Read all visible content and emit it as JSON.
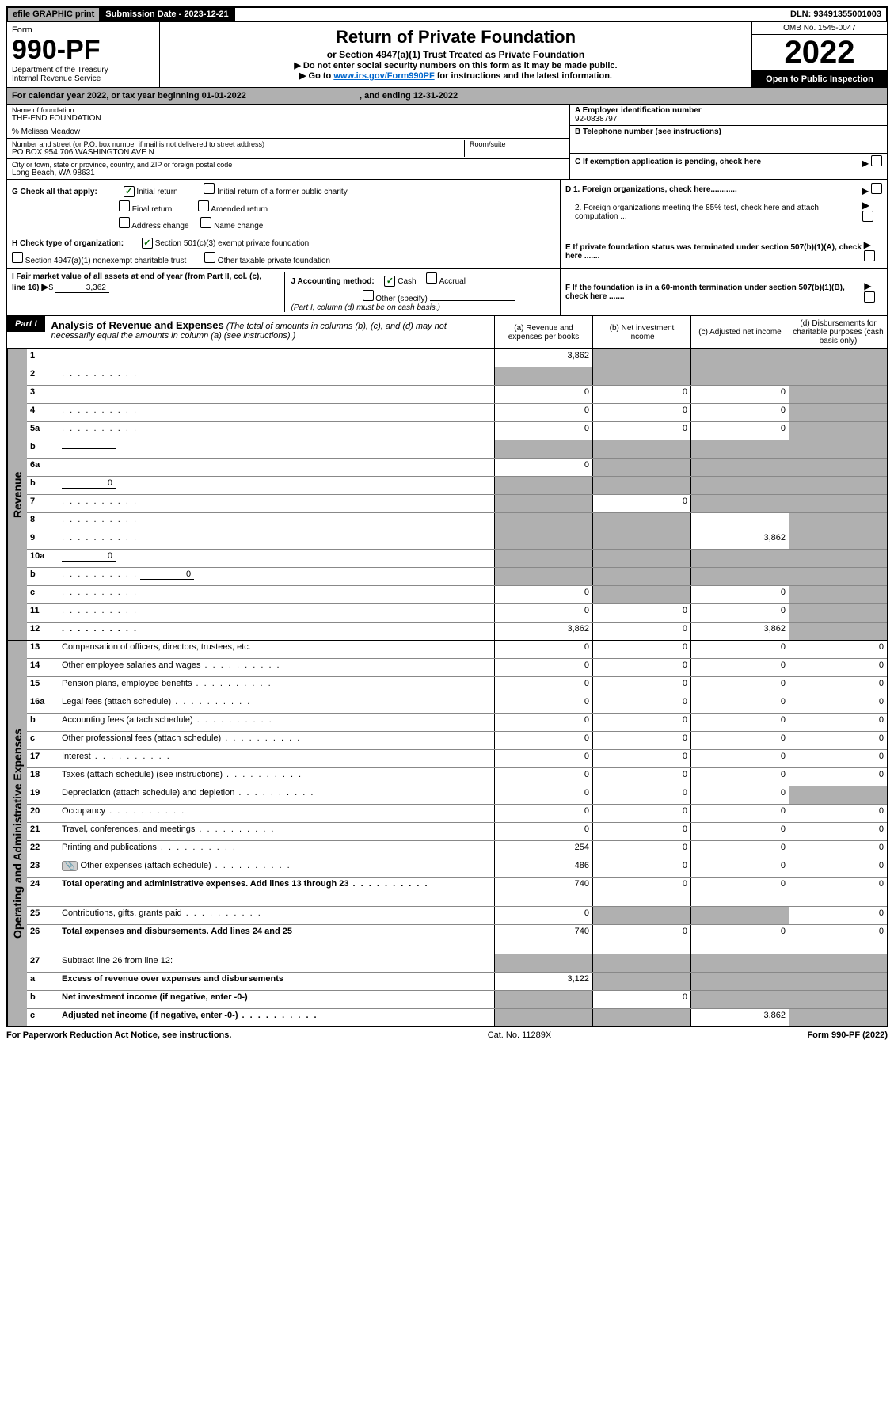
{
  "topbar": {
    "efile": "efile GRAPHIC print",
    "sub_label": "Submission Date - 2023-12-21",
    "dln": "DLN: 93491355001003"
  },
  "header": {
    "form_word": "Form",
    "form_no": "990-PF",
    "dept": "Department of the Treasury",
    "irs": "Internal Revenue Service",
    "title": "Return of Private Foundation",
    "subtitle": "or Section 4947(a)(1) Trust Treated as Private Foundation",
    "note1": "▶ Do not enter social security numbers on this form as it may be made public.",
    "note2_pre": "▶ Go to ",
    "note2_link": "www.irs.gov/Form990PF",
    "note2_post": " for instructions and the latest information.",
    "omb": "OMB No. 1545-0047",
    "year": "2022",
    "open": "Open to Public Inspection"
  },
  "calyear": {
    "text": "For calendar year 2022, or tax year beginning 01-01-2022",
    "ending": ", and ending 12-31-2022"
  },
  "info": {
    "name_label": "Name of foundation",
    "name": "THE-END FOUNDATION",
    "care_of": "% Melissa Meadow",
    "addr_label": "Number and street (or P.O. box number if mail is not delivered to street address)",
    "addr": "PO BOX 954 706 WASHINGTON AVE N",
    "room_label": "Room/suite",
    "city_label": "City or town, state or province, country, and ZIP or foreign postal code",
    "city": "Long Beach, WA  98631",
    "a_label": "A Employer identification number",
    "a_val": "92-0838797",
    "b_label": "B Telephone number (see instructions)",
    "c_label": "C If exemption application is pending, check here",
    "d1": "D 1. Foreign organizations, check here............",
    "d2": "2. Foreign organizations meeting the 85% test, check here and attach computation ...",
    "e": "E  If private foundation status was terminated under section 507(b)(1)(A), check here .......",
    "f": "F  If the foundation is in a 60-month termination under section 507(b)(1)(B), check here .......",
    "g_label": "G Check all that apply:",
    "g_opts": [
      "Initial return",
      "Initial return of a former public charity",
      "Final return",
      "Amended return",
      "Address change",
      "Name change"
    ],
    "g_checked": [
      true,
      false,
      false,
      false,
      false,
      false
    ],
    "h_label": "H Check type of organization:",
    "h_opts": [
      "Section 501(c)(3) exempt private foundation",
      "Section 4947(a)(1) nonexempt charitable trust",
      "Other taxable private foundation"
    ],
    "h_checked": [
      true,
      false,
      false
    ],
    "i_label": "I Fair market value of all assets at end of year (from Part II, col. (c), line 16)",
    "i_val": "3,362",
    "j_label": "J Accounting method:",
    "j_opts": [
      "Cash",
      "Accrual",
      "Other (specify)"
    ],
    "j_checked": [
      true,
      false,
      false
    ],
    "j_note": "(Part I, column (d) must be on cash basis.)"
  },
  "part1": {
    "badge": "Part I",
    "title": "Analysis of Revenue and Expenses",
    "title_note": "(The total of amounts in columns (b), (c), and (d) may not necessarily equal the amounts in column (a) (see instructions).)",
    "col_a": "(a)   Revenue and expenses per books",
    "col_b": "(b)   Net investment income",
    "col_c": "(c)   Adjusted net income",
    "col_d": "(d)   Disbursements for charitable purposes (cash basis only)"
  },
  "sections": {
    "revenue": "Revenue",
    "expenses": "Operating and Administrative Expenses"
  },
  "rows": [
    {
      "n": "1",
      "d": "",
      "a": "3,862",
      "b": "",
      "c": "",
      "sb": true,
      "sc": true,
      "sd": true
    },
    {
      "n": "2",
      "d": "",
      "a": "",
      "b": "",
      "c": "",
      "sa": true,
      "sb": true,
      "sc": true,
      "sd": true,
      "dots": true
    },
    {
      "n": "3",
      "d": "",
      "a": "0",
      "b": "0",
      "c": "0",
      "sd": true
    },
    {
      "n": "4",
      "d": "",
      "a": "0",
      "b": "0",
      "c": "0",
      "sd": true,
      "dots": true
    },
    {
      "n": "5a",
      "d": "",
      "a": "0",
      "b": "0",
      "c": "0",
      "sd": true,
      "dots": true
    },
    {
      "n": "b",
      "d": "",
      "inline": "",
      "a": "",
      "b": "",
      "c": "",
      "sa": true,
      "sb": true,
      "sc": true,
      "sd": true
    },
    {
      "n": "6a",
      "d": "",
      "a": "0",
      "b": "",
      "c": "",
      "sb": true,
      "sc": true,
      "sd": true
    },
    {
      "n": "b",
      "d": "",
      "inline": "0",
      "a": "",
      "b": "",
      "c": "",
      "sa": true,
      "sb": true,
      "sc": true,
      "sd": true
    },
    {
      "n": "7",
      "d": "",
      "a": "",
      "b": "0",
      "c": "",
      "sa": true,
      "sc": true,
      "sd": true,
      "dots": true
    },
    {
      "n": "8",
      "d": "",
      "a": "",
      "b": "",
      "c": "",
      "sa": true,
      "sb": true,
      "sd": true,
      "dots": true
    },
    {
      "n": "9",
      "d": "",
      "a": "",
      "b": "",
      "c": "3,862",
      "sa": true,
      "sb": true,
      "sd": true,
      "dots": true
    },
    {
      "n": "10a",
      "d": "",
      "inline": "0",
      "a": "",
      "b": "",
      "c": "",
      "sa": true,
      "sb": true,
      "sc": true,
      "sd": true
    },
    {
      "n": "b",
      "d": "",
      "inline": "0",
      "a": "",
      "b": "",
      "c": "",
      "sa": true,
      "sb": true,
      "sc": true,
      "sd": true,
      "dots": true
    },
    {
      "n": "c",
      "d": "",
      "a": "0",
      "b": "",
      "c": "0",
      "sb": true,
      "sd": true,
      "dots": true
    },
    {
      "n": "11",
      "d": "",
      "a": "0",
      "b": "0",
      "c": "0",
      "sd": true,
      "dots": true
    },
    {
      "n": "12",
      "d": "",
      "a": "3,862",
      "b": "0",
      "c": "3,862",
      "sd": true,
      "bold": true,
      "dots": true
    }
  ],
  "exp_rows": [
    {
      "n": "13",
      "d": "Compensation of officers, directors, trustees, etc.",
      "a": "0",
      "b": "0",
      "c": "0",
      "e": "0"
    },
    {
      "n": "14",
      "d": "Other employee salaries and wages",
      "a": "0",
      "b": "0",
      "c": "0",
      "e": "0",
      "dots": true
    },
    {
      "n": "15",
      "d": "Pension plans, employee benefits",
      "a": "0",
      "b": "0",
      "c": "0",
      "e": "0",
      "dots": true
    },
    {
      "n": "16a",
      "d": "Legal fees (attach schedule)",
      "a": "0",
      "b": "0",
      "c": "0",
      "e": "0",
      "dots": true
    },
    {
      "n": "b",
      "d": "Accounting fees (attach schedule)",
      "a": "0",
      "b": "0",
      "c": "0",
      "e": "0",
      "dots": true
    },
    {
      "n": "c",
      "d": "Other professional fees (attach schedule)",
      "a": "0",
      "b": "0",
      "c": "0",
      "e": "0",
      "dots": true
    },
    {
      "n": "17",
      "d": "Interest",
      "a": "0",
      "b": "0",
      "c": "0",
      "e": "0",
      "dots": true
    },
    {
      "n": "18",
      "d": "Taxes (attach schedule) (see instructions)",
      "a": "0",
      "b": "0",
      "c": "0",
      "e": "0",
      "dots": true
    },
    {
      "n": "19",
      "d": "Depreciation (attach schedule) and depletion",
      "a": "0",
      "b": "0",
      "c": "0",
      "e": "",
      "se": true,
      "dots": true
    },
    {
      "n": "20",
      "d": "Occupancy",
      "a": "0",
      "b": "0",
      "c": "0",
      "e": "0",
      "dots": true
    },
    {
      "n": "21",
      "d": "Travel, conferences, and meetings",
      "a": "0",
      "b": "0",
      "c": "0",
      "e": "0",
      "dots": true
    },
    {
      "n": "22",
      "d": "Printing and publications",
      "a": "254",
      "b": "0",
      "c": "0",
      "e": "0",
      "dots": true
    },
    {
      "n": "23",
      "d": "Other expenses (attach schedule)",
      "a": "486",
      "b": "0",
      "c": "0",
      "e": "0",
      "icon": true,
      "dots": true
    },
    {
      "n": "24",
      "d": "Total operating and administrative expenses. Add lines 13 through 23",
      "a": "740",
      "b": "0",
      "c": "0",
      "e": "0",
      "bold": true,
      "dots": true,
      "tall": true
    },
    {
      "n": "25",
      "d": "Contributions, gifts, grants paid",
      "a": "0",
      "b": "",
      "c": "",
      "e": "0",
      "sb": true,
      "sc": true,
      "dots": true
    },
    {
      "n": "26",
      "d": "Total expenses and disbursements. Add lines 24 and 25",
      "a": "740",
      "b": "0",
      "c": "0",
      "e": "0",
      "bold": true,
      "tall": true
    },
    {
      "n": "27",
      "d": "Subtract line 26 from line 12:",
      "a": "",
      "b": "",
      "c": "",
      "e": "",
      "sa": true,
      "sb": true,
      "sc": true,
      "se": true
    },
    {
      "n": "a",
      "d": "Excess of revenue over expenses and disbursements",
      "a": "3,122",
      "b": "",
      "c": "",
      "e": "",
      "sb": true,
      "sc": true,
      "se": true,
      "bold": true
    },
    {
      "n": "b",
      "d": "Net investment income (if negative, enter -0-)",
      "a": "",
      "b": "0",
      "c": "",
      "e": "",
      "sa": true,
      "sc": true,
      "se": true,
      "bold": true
    },
    {
      "n": "c",
      "d": "Adjusted net income (if negative, enter -0-)",
      "a": "",
      "b": "",
      "c": "3,862",
      "e": "",
      "sa": true,
      "sb": true,
      "se": true,
      "bold": true,
      "dots": true
    }
  ],
  "footer": {
    "left": "For Paperwork Reduction Act Notice, see instructions.",
    "mid": "Cat. No. 11289X",
    "right": "Form 990-PF (2022)"
  }
}
